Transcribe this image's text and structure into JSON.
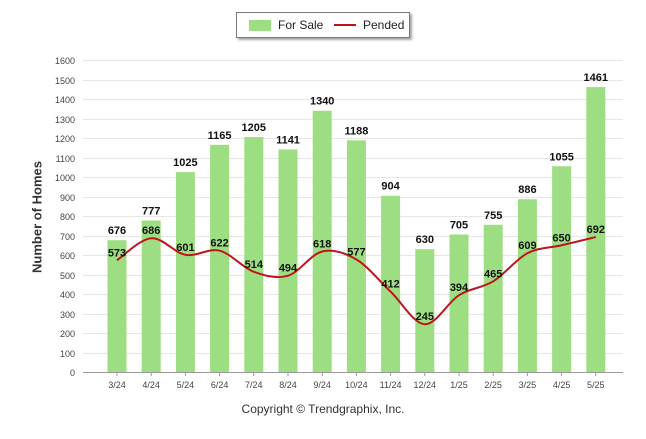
{
  "chart_data": {
    "type": "bar",
    "title": "",
    "xlabel": "",
    "ylabel": "Number of Homes",
    "ylim": [
      0,
      1600
    ],
    "yticks": [
      0,
      100,
      200,
      300,
      400,
      500,
      600,
      700,
      800,
      900,
      1000,
      1100,
      1200,
      1300,
      1400,
      1500,
      1600
    ],
    "grid": true,
    "legend_position": "top-center",
    "categories": [
      "3/24",
      "4/24",
      "5/24",
      "6/24",
      "7/24",
      "8/24",
      "9/24",
      "10/24",
      "11/24",
      "12/24",
      "1/25",
      "2/25",
      "3/25",
      "4/25",
      "5/25"
    ],
    "series": [
      {
        "name": "For Sale",
        "type": "bar",
        "color": "#9ede82",
        "values": [
          676,
          777,
          1025,
          1165,
          1205,
          1141,
          1340,
          1188,
          904,
          630,
          705,
          755,
          886,
          1055,
          1461
        ]
      },
      {
        "name": "Pended",
        "type": "line",
        "color": "#c0141c",
        "values": [
          573,
          686,
          601,
          622,
          514,
          494,
          618,
          577,
          412,
          245,
          394,
          465,
          609,
          650,
          692
        ]
      }
    ]
  },
  "legend": {
    "for_sale": "For Sale",
    "pended": "Pended"
  },
  "footer": {
    "copyright": "Copyright © Trendgraphix, Inc."
  }
}
